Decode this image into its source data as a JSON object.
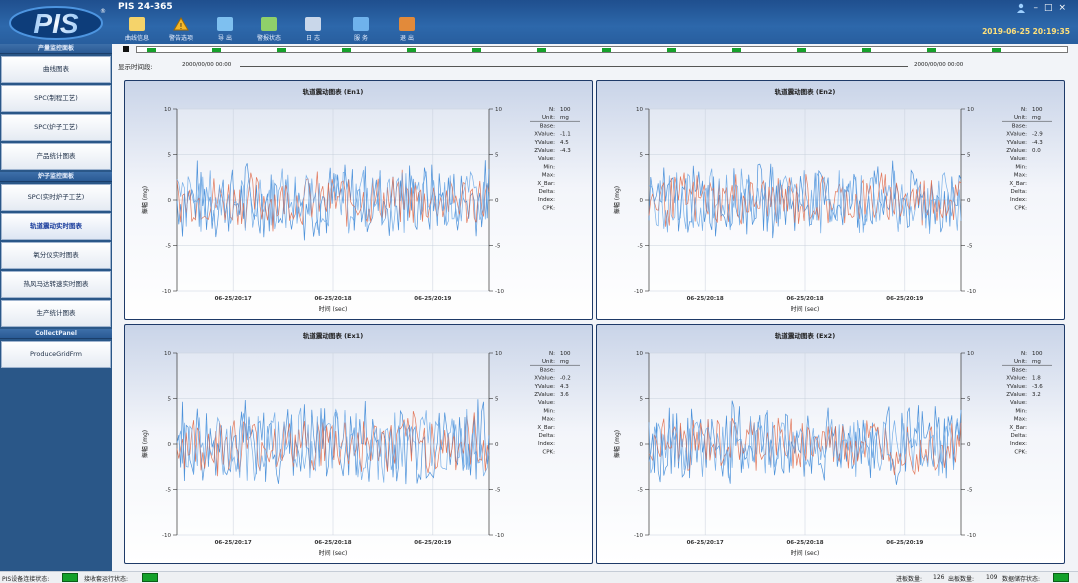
{
  "app": {
    "title": "PIS 24-365",
    "datetime": "2019-06-25 20:19:35"
  },
  "toolbar": [
    {
      "label": "曲线信息",
      "icon": "document-chart-icon"
    },
    {
      "label": "警告选项",
      "icon": "warning-icon"
    },
    {
      "label": "导 出",
      "icon": "export-icon"
    },
    {
      "label": "警报状态",
      "icon": "alarm-status-icon"
    },
    {
      "label": "日 志",
      "icon": "log-icon"
    },
    {
      "label": "服 务",
      "icon": "service-icon"
    },
    {
      "label": "退 出",
      "icon": "exit-icon"
    }
  ],
  "sidebar": {
    "section1": "产量监控面板",
    "section2": "炉子监控面板",
    "section3": "CollectPanel",
    "items1": [
      "曲线图表",
      "SPC(制程工艺)",
      "SPC(炉子工艺)",
      "产品统计图表"
    ],
    "items2": [
      "SPC(实时炉子工艺)",
      "轨道震动实时图表",
      "氧分仪实时图表",
      "热风马达转速实时图表",
      "生产统计图表"
    ],
    "items3": [
      "ProduceGridFrm"
    ],
    "active": "轨道震动实时图表"
  },
  "timeline": {
    "label": "显示时间段:",
    "start": "2000/00/00 00:00",
    "end": "2000/00/00 00:00"
  },
  "status": {
    "conn_label": "PIS设备连接状态:",
    "run_label": "接收套运行状态:",
    "in_label": "进板数量:",
    "in_value": "126",
    "out_label": "出板数量:",
    "out_value": "109",
    "store_label": "数据储存状态:"
  },
  "chart_data": [
    {
      "type": "line",
      "title": "轨道震动图表 (En1)",
      "xlabel": "时间 (sec)",
      "ylabel": "振幅 (mg)",
      "ylim": [
        -10,
        10
      ],
      "yticks": [
        -10,
        -5,
        0,
        5,
        10
      ],
      "xticks": [
        "06-25/20:17",
        "06-25/20:18",
        "06-25/20:19"
      ],
      "legend_position": "right",
      "info": {
        "N": "100",
        "Unit": "mg",
        "Base": "",
        "XValue": "-1.1",
        "YValue": "4.5",
        "ZValue": "-4.3",
        "Value": "",
        "Min": "",
        "Max": "",
        "X_Bar": "",
        "Delta": "",
        "Index": "",
        "CPK": ""
      },
      "series": [
        {
          "color": "#3a86d6",
          "amplitude": 5.0
        },
        {
          "color": "#e06a4a",
          "amplitude": 3.5
        },
        {
          "color": "#6aa7e6",
          "amplitude": 4.0
        }
      ]
    },
    {
      "type": "line",
      "title": "轨道震动图表 (En2)",
      "xlabel": "时间 (sec)",
      "ylabel": "振幅 (mg)",
      "ylim": [
        -10,
        10
      ],
      "yticks": [
        -10,
        -5,
        0,
        5,
        10
      ],
      "xticks": [
        "06-25/20:18",
        "06-25/20:18",
        "06-25/20:19"
      ],
      "legend_position": "right",
      "info": {
        "N": "100",
        "Unit": "mg",
        "Base": "",
        "XValue": "-2.9",
        "YValue": "-4.3",
        "ZValue": "0.0",
        "Value": "",
        "Min": "",
        "Max": "",
        "X_Bar": "",
        "Delta": "",
        "Index": "",
        "CPK": ""
      },
      "series": [
        {
          "color": "#3a86d6",
          "amplitude": 4.5
        },
        {
          "color": "#e06a4a",
          "amplitude": 3.5
        },
        {
          "color": "#6aa7e6",
          "amplitude": 4.0
        }
      ]
    },
    {
      "type": "line",
      "title": "轨道震动图表 (Ex1)",
      "xlabel": "时间 (sec)",
      "ylabel": "振幅 (mg)",
      "ylim": [
        -10,
        10
      ],
      "yticks": [
        -10,
        -5,
        0,
        5,
        10
      ],
      "xticks": [
        "06-25/20:17",
        "06-25/20:18",
        "06-25/20:19"
      ],
      "legend_position": "right",
      "info": {
        "N": "100",
        "Unit": "mg",
        "Base": "",
        "XValue": "-0.2",
        "YValue": "4.3",
        "ZValue": "3.6",
        "Value": "",
        "Min": "",
        "Max": "",
        "X_Bar": "",
        "Delta": "",
        "Index": "",
        "CPK": ""
      },
      "series": [
        {
          "color": "#3a86d6",
          "amplitude": 5.5
        },
        {
          "color": "#e06a4a",
          "amplitude": 3.8
        },
        {
          "color": "#6aa7e6",
          "amplitude": 4.5
        }
      ]
    },
    {
      "type": "line",
      "title": "轨道震动图表 (Ex2)",
      "xlabel": "时间 (sec)",
      "ylabel": "振幅 (mg)",
      "ylim": [
        -10,
        10
      ],
      "yticks": [
        -10,
        -5,
        0,
        5,
        10
      ],
      "xticks": [
        "06-25/20:17",
        "06-25/20:18",
        "06-25/20:19"
      ],
      "legend_position": "right",
      "info": {
        "N": "100",
        "Unit": "mg",
        "Base": "",
        "XValue": "1.8",
        "YValue": "-3.6",
        "ZValue": "3.2",
        "Value": "",
        "Min": "",
        "Max": "",
        "X_Bar": "",
        "Delta": "",
        "Index": "",
        "CPK": ""
      },
      "series": [
        {
          "color": "#3a86d6",
          "amplitude": 5.0
        },
        {
          "color": "#e06a4a",
          "amplitude": 3.5
        },
        {
          "color": "#6aa7e6",
          "amplitude": 4.0
        }
      ]
    }
  ]
}
